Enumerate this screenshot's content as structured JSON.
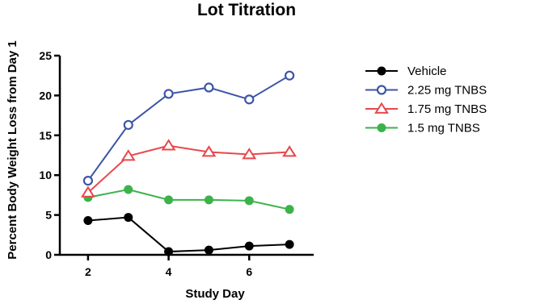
{
  "chart_data": {
    "type": "line",
    "title": "Lot Titration",
    "xlabel": "Study Day",
    "ylabel": "Percent Body Weight Loss from Day 1",
    "xlim": [
      1.3,
      7.6
    ],
    "ylim": [
      0,
      25
    ],
    "xticks": [
      2,
      4,
      6
    ],
    "yticks": [
      0,
      5,
      10,
      15,
      20,
      25
    ],
    "grid": false,
    "legend_position": "right",
    "x": [
      2,
      3,
      4,
      5,
      6,
      7
    ],
    "series": [
      {
        "name": "Vehicle",
        "color": "#000000",
        "marker": "filled-circle",
        "values": [
          4.3,
          4.7,
          0.4,
          0.6,
          1.1,
          1.3
        ]
      },
      {
        "name": "2.25 mg TNBS",
        "color": "#3c55a5",
        "marker": "open-circle",
        "values": [
          9.3,
          16.3,
          20.2,
          21.0,
          19.5,
          22.5
        ]
      },
      {
        "name": "1.75 mg TNBS",
        "color": "#e8474b",
        "marker": "open-triangle",
        "values": [
          7.8,
          12.4,
          13.7,
          12.9,
          12.6,
          12.9
        ]
      },
      {
        "name": "1.5 mg TNBS",
        "color": "#3bb34a",
        "marker": "filled-circle",
        "values": [
          7.2,
          8.2,
          6.9,
          6.9,
          6.8,
          5.7
        ]
      }
    ]
  }
}
